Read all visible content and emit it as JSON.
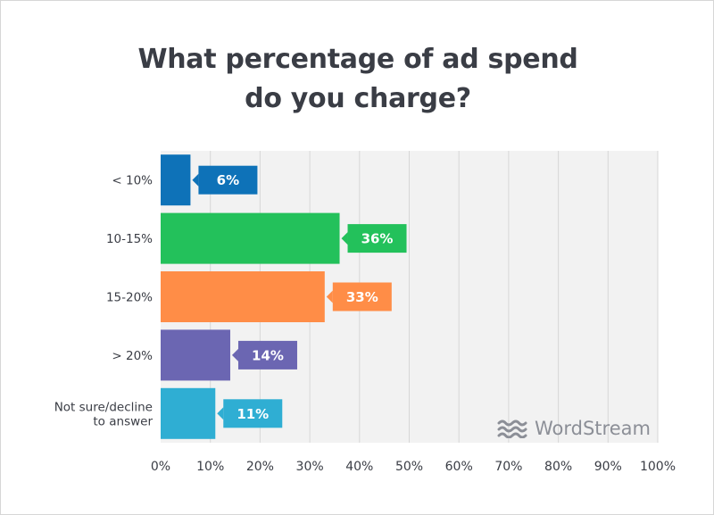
{
  "chart_data": {
    "type": "bar",
    "orientation": "horizontal",
    "title": "What percentage of ad spend\ndo you charge?",
    "categories": [
      "< 10%",
      "10-15%",
      "15-20%",
      "> 20%",
      "Not sure/decline\nto answer"
    ],
    "values": [
      6,
      36,
      33,
      14,
      11
    ],
    "data_labels": [
      "6%",
      "36%",
      "33%",
      "14%",
      "11%"
    ],
    "colors": [
      "#0e72b8",
      "#23c15b",
      "#ff8d47",
      "#6b66b2",
      "#2faed3"
    ],
    "xlim": [
      0,
      100
    ],
    "xticks": [
      0,
      10,
      20,
      30,
      40,
      50,
      60,
      70,
      80,
      90,
      100
    ],
    "xtick_labels": [
      "0%",
      "10%",
      "20%",
      "30%",
      "40%",
      "50%",
      "60%",
      "70%",
      "80%",
      "90%",
      "100%"
    ],
    "xlabel": "",
    "ylabel": "",
    "grid": true,
    "legend": "none"
  },
  "watermark": {
    "text": "WordStream",
    "icon": "wordstream-waves-logo",
    "color": "#8c8f97"
  }
}
